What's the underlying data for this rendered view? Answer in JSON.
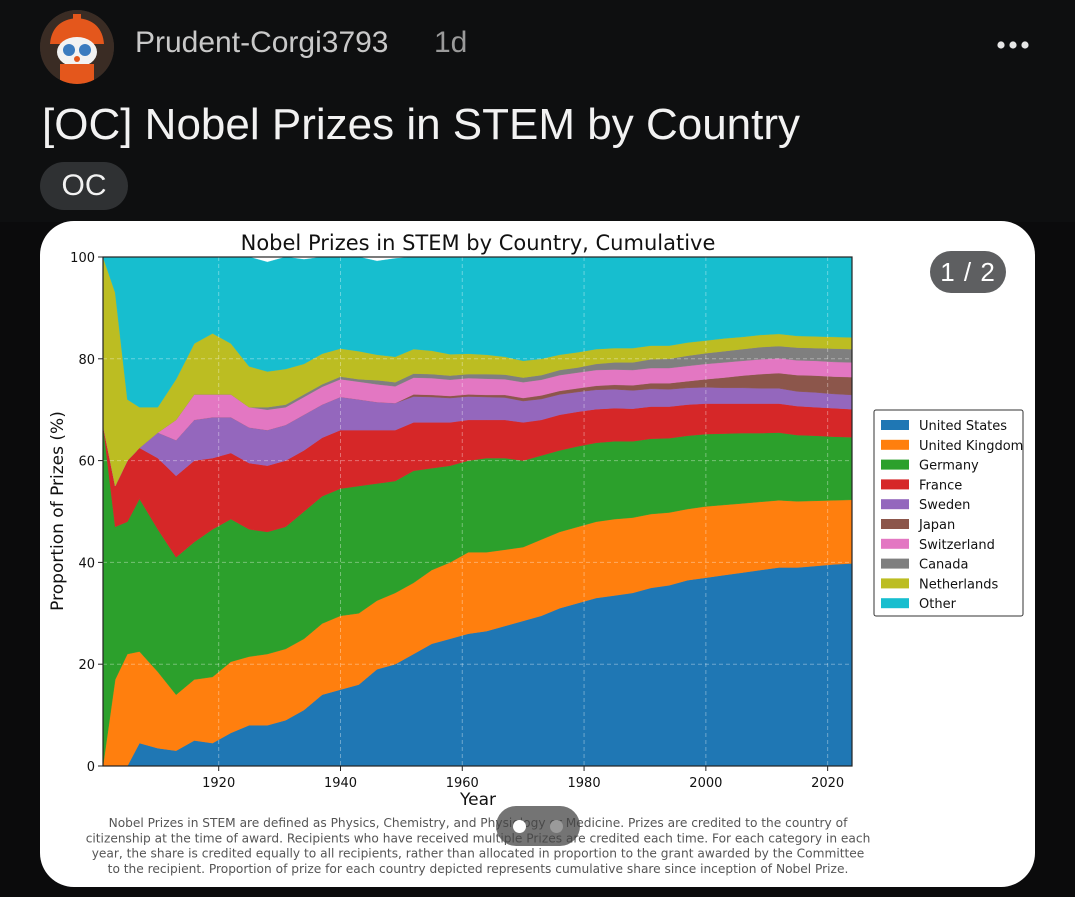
{
  "post": {
    "username": "Prudent-Corgi3793",
    "time_ago": "1d",
    "more_icon": "more-horizontal-icon",
    "title": "[OC] Nobel Prizes in STEM by Country",
    "flair": "OC"
  },
  "gallery": {
    "counter": "1 / 2"
  },
  "caption": {
    "lines": [
      "Nobel Prizes in STEM are defined as Physics, Chemistry, and Physiology or Medicine. Prizes are credited to the country of",
      "citizenship at the time of award. Recipients who have received multiple Prizes are credited each time. For each category in each",
      "year, the share is credited equally to all recipients, rather than allocated in proportion to the grant awarded by the Committee",
      "to the recipient. Proportion of prize for each country depicted represents cumulative share since inception of Nobel Prize."
    ]
  },
  "chart_data": {
    "type": "area",
    "title": "Nobel Prizes in STEM by Country, Cumulative",
    "xlabel": "Year",
    "ylabel": "Proportion of Prizes (%)",
    "xlim": [
      1901,
      2024
    ],
    "ylim": [
      0,
      100
    ],
    "xticks": [
      1920,
      1940,
      1960,
      1980,
      2000,
      2020
    ],
    "yticks": [
      0,
      20,
      40,
      60,
      80,
      100
    ],
    "grid": true,
    "legend_position": "right",
    "stacked": true,
    "x": [
      1901,
      1903,
      1905,
      1907,
      1910,
      1913,
      1916,
      1919,
      1922,
      1925,
      1928,
      1931,
      1934,
      1937,
      1940,
      1943,
      1946,
      1949,
      1952,
      1955,
      1958,
      1961,
      1964,
      1967,
      1970,
      1973,
      1976,
      1979,
      1982,
      1985,
      1988,
      1991,
      1994,
      1997,
      2000,
      2003,
      2006,
      2009,
      2012,
      2015,
      2018,
      2021,
      2024
    ],
    "series": [
      {
        "name": "United States",
        "color": "#1f77b4",
        "values": [
          0,
          0,
          0,
          4.5,
          3.5,
          3,
          5,
          4.5,
          6.5,
          8,
          8,
          9,
          11,
          14,
          15,
          16,
          19,
          20,
          22,
          24,
          25,
          26,
          26.5,
          27.5,
          28.5,
          29.5,
          31,
          32,
          33,
          33.5,
          34,
          35,
          35.5,
          36.5,
          37,
          37.5,
          38,
          38.5,
          39,
          39,
          39.3,
          39.6,
          39.8
        ]
      },
      {
        "name": "United Kingdom",
        "color": "#ff7f0e",
        "values": [
          0,
          17,
          22,
          18,
          15,
          11,
          12,
          13,
          14,
          13.5,
          14,
          14,
          14,
          14,
          14.5,
          14,
          13.5,
          14,
          14,
          14.5,
          15,
          16,
          15.5,
          15,
          14.5,
          15,
          15,
          15,
          15,
          15,
          14.8,
          14.5,
          14.3,
          14,
          14,
          13.8,
          13.6,
          13.4,
          13.2,
          13,
          12.8,
          12.6,
          12.5
        ]
      },
      {
        "name": "Germany",
        "color": "#2ca02c",
        "values": [
          67,
          30,
          26,
          30,
          28,
          27,
          27,
          29,
          28,
          25,
          24,
          24,
          25,
          25,
          25,
          25,
          23,
          22,
          22,
          20,
          19,
          18,
          18.5,
          18,
          17,
          16.5,
          16,
          15.8,
          15.5,
          15.3,
          15,
          14.8,
          14.6,
          14.4,
          14.2,
          14,
          13.8,
          13.5,
          13.3,
          13,
          12.8,
          12.5,
          12.3
        ]
      },
      {
        "name": "France",
        "color": "#d62728",
        "values": [
          0,
          8,
          12,
          10,
          14,
          16,
          16,
          14,
          13,
          13,
          13,
          13,
          12,
          11.5,
          11.5,
          11,
          10.5,
          10,
          9.5,
          9,
          8.5,
          8,
          7.5,
          7.5,
          7.5,
          7,
          7,
          6.8,
          6.6,
          6.5,
          6.4,
          6.3,
          6.2,
          6.1,
          6,
          5.9,
          5.8,
          5.8,
          5.7,
          5.7,
          5.6,
          5.6,
          5.5
        ]
      },
      {
        "name": "Sweden",
        "color": "#9467bd",
        "values": [
          0,
          0,
          0,
          0,
          5,
          7,
          8,
          8,
          7,
          7,
          7,
          7,
          7,
          6.5,
          6.5,
          6,
          5.5,
          5.3,
          5.1,
          5,
          4.8,
          4.6,
          4.5,
          4.4,
          4.2,
          4.1,
          4,
          3.9,
          3.8,
          3.7,
          3.6,
          3.5,
          3.4,
          3.3,
          3.2,
          3.1,
          3.1,
          3,
          3,
          2.9,
          2.9,
          2.8,
          2.8
        ]
      },
      {
        "name": "Japan",
        "color": "#8c564b",
        "values": [
          0,
          0,
          0,
          0,
          0,
          0,
          0,
          0,
          0,
          0,
          0,
          0,
          0,
          0,
          0,
          0,
          0,
          0,
          0.4,
          0.4,
          0.4,
          0.4,
          0.4,
          0.5,
          0.6,
          0.7,
          0.7,
          0.7,
          0.8,
          0.9,
          1,
          1.1,
          1.2,
          1.3,
          1.6,
          2,
          2.4,
          2.8,
          3,
          3.2,
          3.3,
          3.4,
          3.5
        ]
      },
      {
        "name": "Switzerland",
        "color": "#e377c2",
        "values": [
          0,
          0,
          0,
          0,
          0,
          4,
          5,
          4.5,
          4.5,
          4,
          4,
          3.5,
          3.5,
          3.5,
          3.5,
          3.5,
          3.5,
          3.3,
          3.3,
          3.3,
          3.2,
          3.2,
          3.2,
          3.1,
          3.1,
          3.1,
          3.1,
          3.1,
          3.1,
          3,
          3,
          3,
          3,
          3,
          3,
          3,
          2.9,
          2.9,
          2.9,
          2.9,
          2.9,
          2.9,
          2.9
        ]
      },
      {
        "name": "Canada",
        "color": "#7f7f7f",
        "values": [
          0,
          0,
          0,
          0,
          0,
          0,
          0,
          0,
          0,
          0,
          0.5,
          0.5,
          0.5,
          0.5,
          0.5,
          0.5,
          0.8,
          0.8,
          0.8,
          0.8,
          0.8,
          0.8,
          0.9,
          0.9,
          0.9,
          0.9,
          1,
          1,
          1.2,
          1.4,
          1.5,
          1.7,
          1.8,
          2,
          2.1,
          2.2,
          2.3,
          2.4,
          2.4,
          2.5,
          2.5,
          2.6,
          2.6
        ]
      },
      {
        "name": "Netherlands",
        "color": "#bcbd22",
        "values": [
          33,
          38,
          12,
          8,
          5,
          8,
          10,
          12,
          10,
          8,
          7,
          7,
          6,
          6,
          5.5,
          5.5,
          5,
          5,
          4.8,
          4.6,
          4.2,
          4,
          3.8,
          3.5,
          3.3,
          3.2,
          3,
          3,
          2.9,
          2.8,
          2.8,
          2.7,
          2.6,
          2.6,
          2.5,
          2.5,
          2.4,
          2.4,
          2.4,
          2.3,
          2.3,
          2.3,
          2.3
        ]
      },
      {
        "name": "Other",
        "color": "#17becf",
        "values": [
          0,
          7,
          28,
          29.5,
          29.5,
          24,
          17,
          15,
          17,
          22,
          21.5,
          22,
          20.5,
          19,
          18,
          18.5,
          18.4,
          19.3,
          19,
          18.5,
          19.5,
          19.6,
          19.4,
          19.6,
          20.6,
          20.4,
          19.1,
          18.7,
          18.1,
          18,
          17.9,
          18.4,
          18.4,
          17.9,
          17.4,
          17.5,
          17.4,
          17.3,
          17.1,
          17.6,
          17.5,
          17.7,
          17.8
        ]
      }
    ]
  }
}
